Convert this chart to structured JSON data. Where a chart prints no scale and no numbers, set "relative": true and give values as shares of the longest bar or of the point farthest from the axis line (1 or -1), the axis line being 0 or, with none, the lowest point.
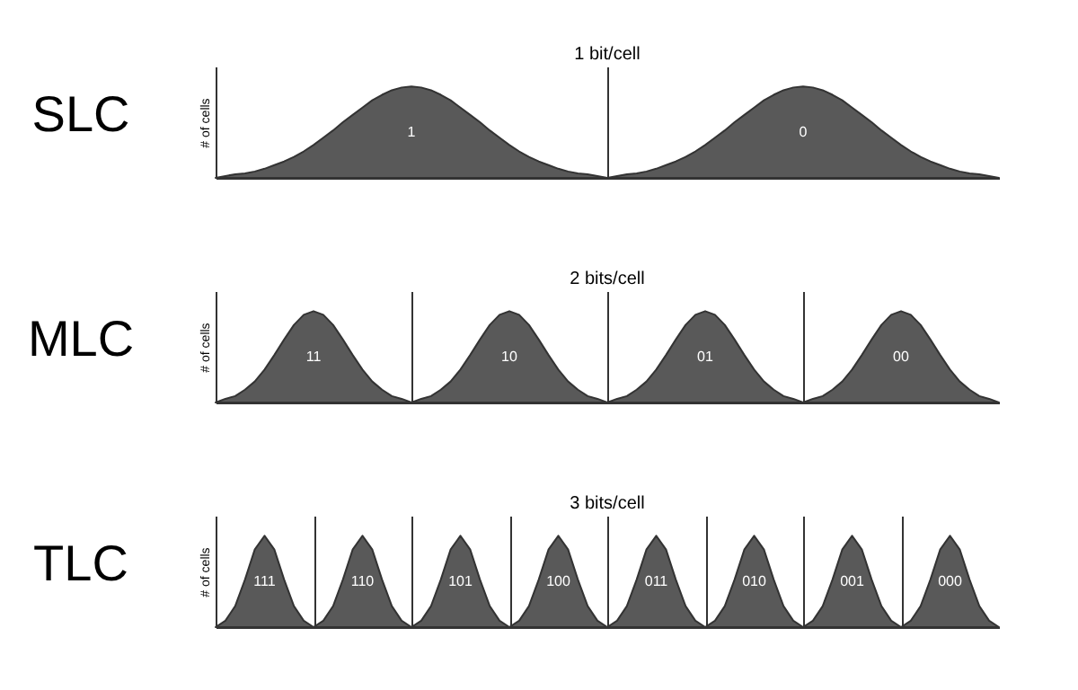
{
  "chart_data": [
    {
      "type": "area",
      "title": "1 bit/cell",
      "grid": "x",
      "ylabel": "# of cells",
      "relative": true,
      "categories": [
        null,
        null,
        null,
        null,
        null,
        null,
        null,
        null,
        null,
        null,
        null,
        null,
        null,
        null,
        null,
        null,
        null,
        null,
        null,
        null,
        null,
        null,
        null,
        null,
        null,
        null,
        null,
        null,
        null,
        null,
        null,
        null,
        null,
        null,
        null,
        null,
        null,
        null,
        null,
        null,
        null,
        null,
        null,
        null,
        null,
        null,
        null,
        null,
        null,
        null,
        null,
        null,
        null,
        null,
        null,
        null,
        null,
        null,
        null,
        null,
        null,
        null,
        null,
        null,
        null,
        null,
        null,
        null,
        null,
        null,
        null,
        null,
        null,
        null,
        null,
        null,
        null,
        null,
        null,
        null,
        null
      ],
      "series": [
        {
          "color": "#595959",
          "values": [
            0,
            0.02,
            0.04,
            0.05,
            0.07,
            0.1,
            0.14,
            0.18,
            0.23,
            0.29,
            0.36,
            0.44,
            0.52,
            0.61,
            0.69,
            0.77,
            0.85,
            0.91,
            0.96,
            0.99,
            1,
            0.99,
            0.96,
            0.91,
            0.85,
            0.77,
            0.69,
            0.61,
            0.52,
            0.44,
            0.36,
            0.29,
            0.23,
            0.18,
            0.14,
            0.1,
            0.07,
            0.05,
            0.04,
            0.02,
            0,
            0.02,
            0.04,
            0.05,
            0.07,
            0.1,
            0.14,
            0.18,
            0.23,
            0.29,
            0.36,
            0.44,
            0.52,
            0.61,
            0.69,
            0.77,
            0.85,
            0.91,
            0.96,
            0.99,
            1,
            0.99,
            0.96,
            0.91,
            0.85,
            0.77,
            0.69,
            0.61,
            0.52,
            0.44,
            0.36,
            0.29,
            0.23,
            0.18,
            0.14,
            0.1,
            0.07,
            0.05,
            0.04,
            0.02,
            0
          ]
        }
      ],
      "annotations": [
        "SLC",
        "1",
        "0"
      ]
    },
    {
      "type": "area",
      "title": "2 bits/cell",
      "grid": "x",
      "ylabel": "# of cells",
      "relative": true,
      "categories": [
        null,
        null,
        null,
        null,
        null,
        null,
        null,
        null,
        null,
        null,
        null,
        null,
        null,
        null,
        null,
        null,
        null,
        null,
        null,
        null,
        null,
        null,
        null,
        null,
        null,
        null,
        null,
        null,
        null,
        null,
        null,
        null,
        null,
        null,
        null,
        null,
        null,
        null,
        null,
        null,
        null,
        null,
        null,
        null,
        null,
        null,
        null,
        null,
        null,
        null,
        null,
        null,
        null,
        null,
        null,
        null,
        null,
        null,
        null,
        null,
        null,
        null,
        null,
        null,
        null,
        null,
        null,
        null,
        null,
        null,
        null,
        null,
        null,
        null,
        null,
        null,
        null,
        null,
        null,
        null,
        null
      ],
      "series": [
        {
          "color": "#595959",
          "values": [
            0,
            0.04,
            0.07,
            0.14,
            0.23,
            0.36,
            0.52,
            0.69,
            0.85,
            0.96,
            1,
            0.96,
            0.85,
            0.69,
            0.52,
            0.36,
            0.23,
            0.14,
            0.07,
            0.04,
            0,
            0.04,
            0.07,
            0.14,
            0.23,
            0.36,
            0.52,
            0.69,
            0.85,
            0.96,
            1,
            0.96,
            0.85,
            0.69,
            0.52,
            0.36,
            0.23,
            0.14,
            0.07,
            0.04,
            0,
            0.04,
            0.07,
            0.14,
            0.23,
            0.36,
            0.52,
            0.69,
            0.85,
            0.96,
            1,
            0.96,
            0.85,
            0.69,
            0.52,
            0.36,
            0.23,
            0.14,
            0.07,
            0.04,
            0,
            0.04,
            0.07,
            0.14,
            0.23,
            0.36,
            0.52,
            0.69,
            0.85,
            0.96,
            1,
            0.96,
            0.85,
            0.69,
            0.52,
            0.36,
            0.23,
            0.14,
            0.07,
            0.04,
            0
          ]
        }
      ],
      "annotations": [
        "MLC",
        "11",
        "10",
        "01",
        "00"
      ]
    },
    {
      "type": "area",
      "title": "3 bits/cell",
      "grid": "x",
      "ylabel": "# of cells",
      "relative": true,
      "categories": [
        null,
        null,
        null,
        null,
        null,
        null,
        null,
        null,
        null,
        null,
        null,
        null,
        null,
        null,
        null,
        null,
        null,
        null,
        null,
        null,
        null,
        null,
        null,
        null,
        null,
        null,
        null,
        null,
        null,
        null,
        null,
        null,
        null,
        null,
        null,
        null,
        null,
        null,
        null,
        null,
        null,
        null,
        null,
        null,
        null,
        null,
        null,
        null,
        null,
        null,
        null,
        null,
        null,
        null,
        null,
        null,
        null,
        null,
        null,
        null,
        null,
        null,
        null,
        null,
        null,
        null,
        null,
        null,
        null,
        null,
        null,
        null,
        null,
        null,
        null,
        null,
        null,
        null,
        null,
        null,
        null
      ],
      "series": [
        {
          "color": "#595959",
          "values": [
            0,
            0.07,
            0.23,
            0.52,
            0.85,
            1,
            0.85,
            0.52,
            0.23,
            0.07,
            0,
            0.07,
            0.23,
            0.52,
            0.85,
            1,
            0.85,
            0.52,
            0.23,
            0.07,
            0,
            0.07,
            0.23,
            0.52,
            0.85,
            1,
            0.85,
            0.52,
            0.23,
            0.07,
            0,
            0.07,
            0.23,
            0.52,
            0.85,
            1,
            0.85,
            0.52,
            0.23,
            0.07,
            0,
            0.07,
            0.23,
            0.52,
            0.85,
            1,
            0.85,
            0.52,
            0.23,
            0.07,
            0,
            0.07,
            0.23,
            0.52,
            0.85,
            1,
            0.85,
            0.52,
            0.23,
            0.07,
            0,
            0.07,
            0.23,
            0.52,
            0.85,
            1,
            0.85,
            0.52,
            0.23,
            0.07,
            0,
            0.07,
            0.23,
            0.52,
            0.85,
            1,
            0.85,
            0.52,
            0.23,
            0.07,
            0
          ]
        }
      ],
      "annotations": [
        "TLC",
        "111",
        "110",
        "101",
        "100",
        "011",
        "010",
        "001",
        "000"
      ]
    }
  ]
}
